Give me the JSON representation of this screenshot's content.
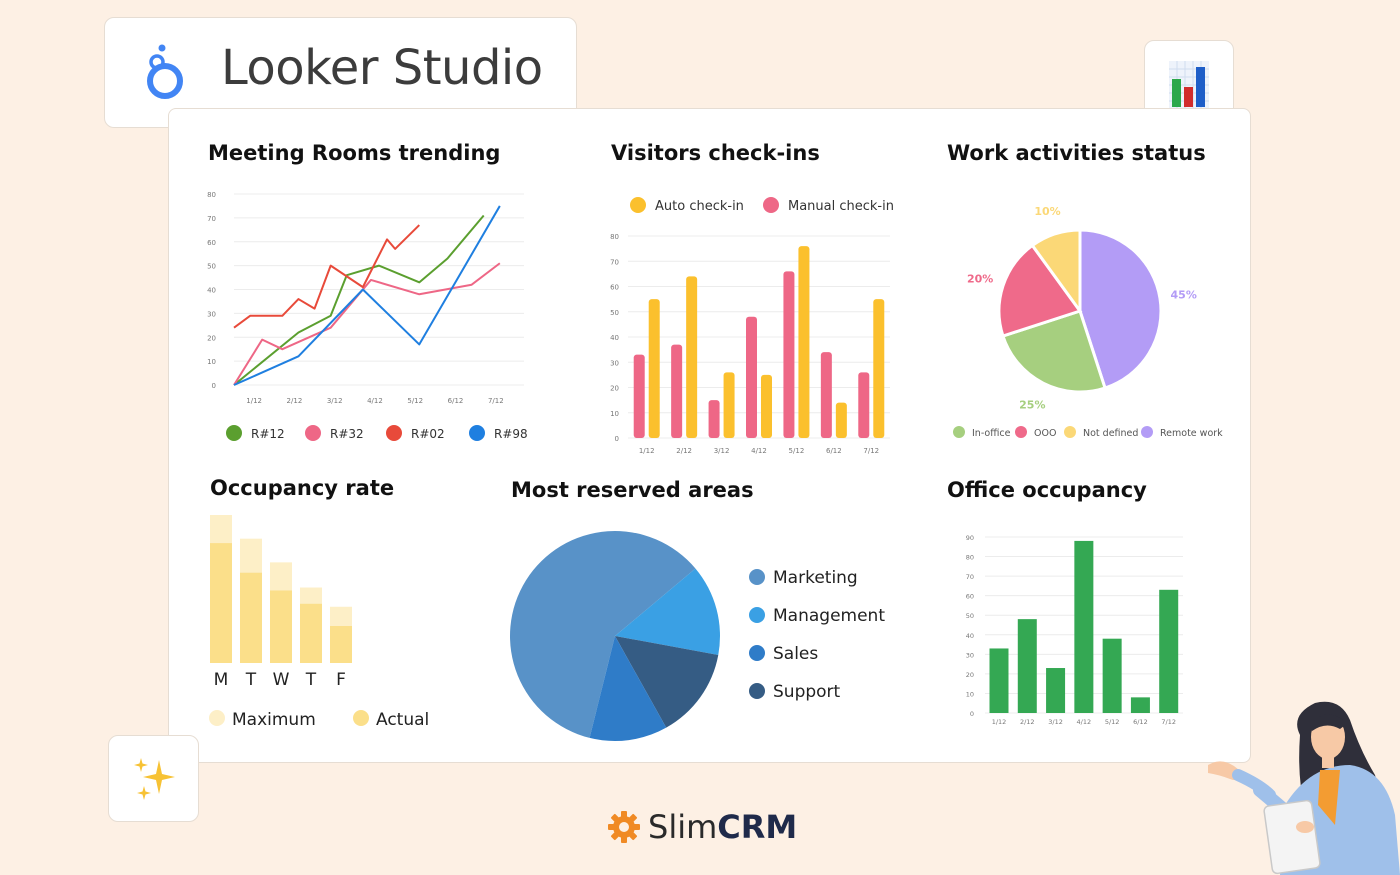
{
  "brand": {
    "name": "Looker Studio"
  },
  "footer": {
    "slim": "Slim",
    "crm": "CRM"
  },
  "icons": {
    "chart_badge": "bar-chart-icon",
    "sparkle": "sparkles-icon",
    "footer": "gear-icon"
  },
  "chart_data": [
    {
      "id": "meeting",
      "type": "line",
      "title": "Meeting Rooms trending",
      "x": [
        "1/12",
        "2/12",
        "3/12",
        "4/12",
        "5/12",
        "6/12",
        "7/12"
      ],
      "yticks": [
        0,
        10,
        20,
        30,
        40,
        50,
        60,
        70,
        80
      ],
      "ylim": [
        0,
        80
      ],
      "series": [
        {
          "name": "R#12",
          "color": "#5b9f2f",
          "points": [
            [
              0,
              0
            ],
            [
              1.6,
              22
            ],
            [
              2.4,
              29
            ],
            [
              2.8,
              46
            ],
            [
              3.6,
              50
            ],
            [
              4.6,
              43
            ],
            [
              5.3,
              53
            ],
            [
              6.2,
              71
            ]
          ]
        },
        {
          "name": "R#32",
          "color": "#ee6786",
          "points": [
            [
              0,
              0
            ],
            [
              0.7,
              19
            ],
            [
              1.2,
              15
            ],
            [
              2.4,
              24
            ],
            [
              3.4,
              44
            ],
            [
              4.6,
              38
            ],
            [
              5.9,
              42
            ],
            [
              6.6,
              51
            ]
          ]
        },
        {
          "name": "R#02",
          "color": "#e84a3a",
          "points": [
            [
              0,
              24
            ],
            [
              0.4,
              29
            ],
            [
              1.2,
              29
            ],
            [
              1.6,
              36
            ],
            [
              2.0,
              32
            ],
            [
              2.4,
              50
            ],
            [
              3.2,
              41
            ],
            [
              3.8,
              61
            ],
            [
              4.0,
              57
            ],
            [
              4.6,
              67
            ]
          ]
        },
        {
          "name": "R#98",
          "color": "#1f7fe0",
          "points": [
            [
              0,
              0
            ],
            [
              1.6,
              12
            ],
            [
              3.2,
              40
            ],
            [
              4.6,
              17
            ],
            [
              6.6,
              75
            ]
          ]
        }
      ],
      "legend": [
        "R#12",
        "R#32",
        "R#02",
        "R#98"
      ]
    },
    {
      "id": "visitors",
      "type": "bar",
      "title": "Visitors check-ins",
      "categories": [
        "1/12",
        "2/12",
        "3/12",
        "4/12",
        "5/12",
        "6/12",
        "7/12"
      ],
      "yticks": [
        0,
        10,
        20,
        30,
        40,
        50,
        60,
        70,
        80
      ],
      "ylim": [
        0,
        80
      ],
      "series": [
        {
          "name": "Manual check-in",
          "color": "#ee6786",
          "values": [
            33,
            37,
            15,
            48,
            66,
            34,
            26
          ]
        },
        {
          "name": "Auto check-in",
          "color": "#fbc02d",
          "values": [
            55,
            64,
            26,
            25,
            76,
            14,
            55
          ]
        }
      ],
      "legend": [
        "Auto check-in",
        "Manual check-in"
      ]
    },
    {
      "id": "work",
      "type": "pie",
      "title": "Work activities status",
      "slices": [
        {
          "label": "Remote work",
          "value": 45,
          "text": "45%",
          "color": "#b39cf6"
        },
        {
          "label": "In-office",
          "value": 25,
          "text": "25%",
          "color": "#a6cf7f"
        },
        {
          "label": "OOO",
          "value": 20,
          "text": "20%",
          "color": "#ef6a8a"
        },
        {
          "label": "Not defined",
          "value": 10,
          "text": "10%",
          "color": "#fbd877"
        }
      ],
      "legend": [
        "In-office",
        "OOO",
        "Not defined",
        "Remote work"
      ]
    },
    {
      "id": "occupancy",
      "type": "bar",
      "title": "Occupancy rate",
      "categories": [
        "M",
        "T",
        "W",
        "T",
        "F"
      ],
      "series": [
        {
          "name": "Maximum",
          "color": "#fdefc7",
          "values": [
            100,
            84,
            68,
            51,
            38
          ]
        },
        {
          "name": "Actual",
          "color": "#fbdf8a",
          "values": [
            81,
            61,
            49,
            40,
            25
          ]
        }
      ],
      "legend": [
        "Maximum",
        "Actual"
      ]
    },
    {
      "id": "areas",
      "type": "pie",
      "title": "Most reserved areas",
      "slices": [
        {
          "label": "Marketing",
          "value": 60,
          "color": "#5892c8"
        },
        {
          "label": "Management",
          "value": 14,
          "color": "#3aa0e4"
        },
        {
          "label": "Support",
          "value": 14,
          "color": "#355c84"
        },
        {
          "label": "Sales",
          "value": 12,
          "color": "#2f7cc8"
        }
      ],
      "legend": [
        "Marketing",
        "Management",
        "Sales",
        "Support"
      ]
    },
    {
      "id": "office",
      "type": "bar",
      "title": "Office occupancy",
      "categories": [
        "1/12",
        "2/12",
        "3/12",
        "4/12",
        "5/12",
        "6/12",
        "7/12"
      ],
      "yticks": [
        0,
        10,
        20,
        30,
        40,
        50,
        60,
        70,
        80,
        90
      ],
      "ylim": [
        0,
        90
      ],
      "series": [
        {
          "name": "",
          "color": "#34a853",
          "values": [
            33,
            48,
            23,
            88,
            38,
            8,
            63
          ]
        }
      ]
    }
  ]
}
